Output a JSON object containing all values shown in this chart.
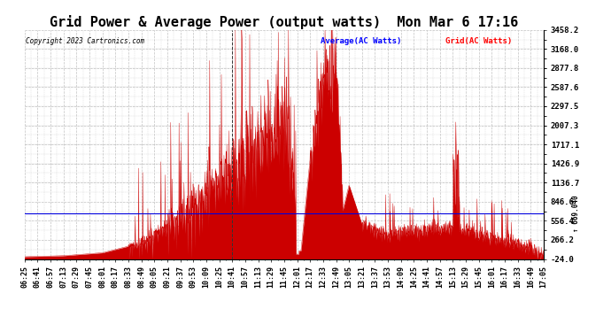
{
  "title": "Grid Power & Average Power (output watts)  Mon Mar 6 17:16",
  "copyright": "Copyright 2023 Cartronics.com",
  "legend_average": "Average(AC Watts)",
  "legend_grid": "Grid(AC Watts)",
  "ymin": -24.0,
  "ymax": 3458.2,
  "yticks": [
    3458.2,
    3168.0,
    2877.8,
    2587.6,
    2297.5,
    2007.3,
    1717.1,
    1426.9,
    1136.7,
    846.6,
    556.4,
    266.2,
    -24.0
  ],
  "hline_value": 669.04,
  "hline_label": "669.040",
  "background_color": "#ffffff",
  "fill_color": "#cc0000",
  "line_color": "#cc0000",
  "grid_color": "#bbbbbb",
  "hline_color": "#0000dd",
  "vline_color": "#333333",
  "xtick_labels": [
    "06:25",
    "06:41",
    "06:57",
    "07:13",
    "07:29",
    "07:45",
    "08:01",
    "08:17",
    "08:33",
    "08:49",
    "09:05",
    "09:21",
    "09:37",
    "09:53",
    "10:09",
    "10:25",
    "10:41",
    "10:57",
    "11:13",
    "11:29",
    "11:45",
    "12:01",
    "12:17",
    "12:33",
    "12:49",
    "13:05",
    "13:21",
    "13:37",
    "13:53",
    "14:09",
    "14:25",
    "14:41",
    "14:57",
    "15:13",
    "15:29",
    "15:45",
    "16:01",
    "16:17",
    "16:33",
    "16:49",
    "17:05"
  ],
  "title_fontsize": 11,
  "tick_fontsize": 6,
  "dpi": 100,
  "figsize": [
    6.9,
    3.75
  ]
}
